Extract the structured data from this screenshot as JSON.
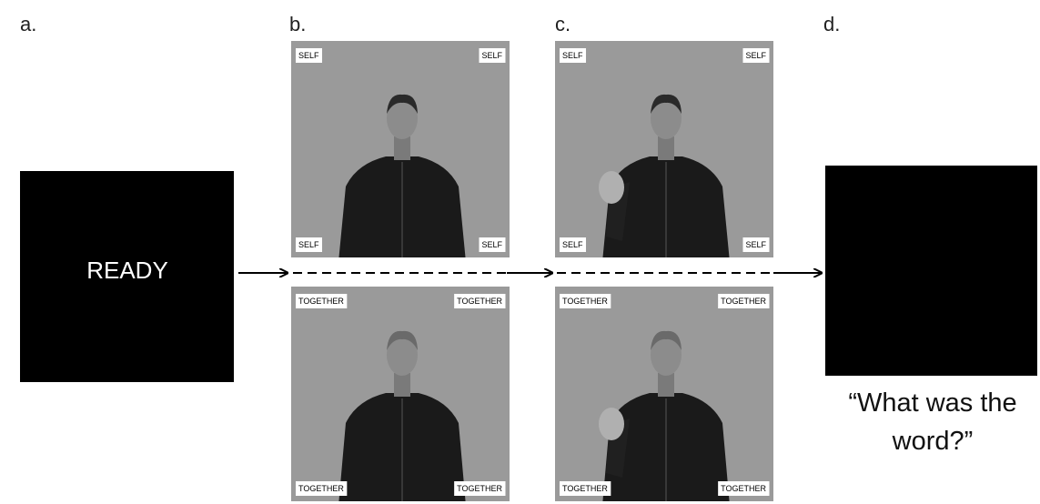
{
  "panels": [
    {
      "label": "a.",
      "screen_text": "READY"
    },
    {
      "label": "b.",
      "frames": [
        {
          "corner_labels": [
            "SELF",
            "SELF",
            "SELF",
            "SELF"
          ]
        },
        {
          "corner_labels": [
            "TOGETHER",
            "TOGETHER",
            "TOGETHER",
            "TOGETHER"
          ]
        }
      ]
    },
    {
      "label": "c.",
      "frames": [
        {
          "corner_labels": [
            "SELF",
            "SELF",
            "SELF",
            "SELF"
          ]
        },
        {
          "corner_labels": [
            "TOGETHER",
            "TOGETHER",
            "TOGETHER",
            "TOGETHER"
          ]
        }
      ]
    },
    {
      "label": "d.",
      "caption_lines": [
        "“What was the",
        "word?”"
      ]
    }
  ]
}
